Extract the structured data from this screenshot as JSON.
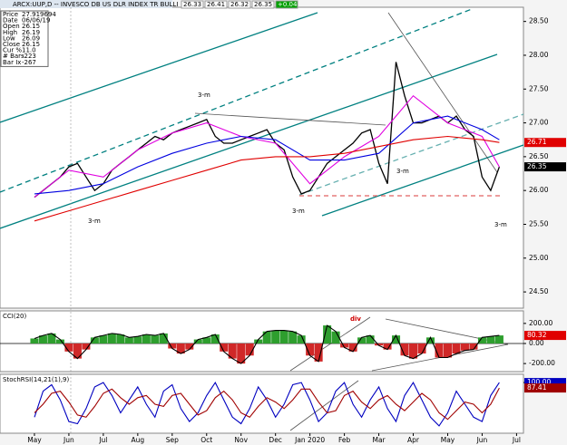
{
  "chart_data": [
    {
      "type": "line",
      "title": "ARCX:UUP,D -- INVESCO DB US DLR INDEX TR BULLI",
      "quote": [
        "26.33",
        "26.41",
        "26.32",
        "26.35",
        "+0.04"
      ],
      "info": [
        [
          "Price",
          "27.919694"
        ],
        [
          "Date",
          "06/06/19"
        ],
        [
          "Open",
          "26.15"
        ],
        [
          "High",
          "26.19"
        ],
        [
          "Low",
          "26.09"
        ],
        [
          "Close",
          "26.15"
        ],
        [
          "Cur %",
          "11.0"
        ],
        [
          "# Bars",
          "-223"
        ],
        [
          "Bar Ix",
          "-267"
        ]
      ],
      "annotations": [
        "3-m",
        "3-m",
        "3-m",
        "3-m",
        "3-m"
      ],
      "xlim": [
        -1,
        14.2
      ],
      "ylim": [
        24.26,
        28.71
      ],
      "yticks": [
        {
          "value": 28.5,
          "label": "28.50"
        },
        {
          "value": 28,
          "label": "28.00"
        },
        {
          "value": 27.5,
          "label": "27.50"
        },
        {
          "value": 27,
          "label": "27.00"
        },
        {
          "value": 26.5,
          "label": "26.50"
        },
        {
          "value": 26,
          "label": "26.00"
        },
        {
          "value": 25.5,
          "label": "25.50"
        },
        {
          "value": 25,
          "label": "25.00"
        },
        {
          "value": 24.5,
          "label": "24.50"
        }
      ],
      "price_labels": [
        {
          "value": 26.71,
          "label": "26.71",
          "color": "#e00000"
        },
        {
          "value": 26.35,
          "label": "26.35",
          "color": "#000000"
        }
      ],
      "series": [
        {
          "color": "#000000",
          "x": [
            0,
            0.25,
            0.5,
            0.75,
            1,
            1.25,
            1.5,
            1.75,
            2,
            2.25,
            2.5,
            2.75,
            3,
            3.25,
            3.5,
            3.75,
            4,
            4.25,
            4.5,
            4.75,
            5,
            5.25,
            5.5,
            5.75,
            6,
            6.25,
            6.5,
            6.75,
            7,
            7.25,
            7.5,
            7.75,
            8,
            8.25,
            8.5,
            8.75,
            9,
            9.25,
            9.5,
            9.75,
            10,
            10.25,
            10.5,
            10.75,
            11,
            11.25,
            11.5,
            11.75,
            12,
            12.25,
            12.5,
            12.75,
            13,
            13.25,
            13.5
          ],
          "values": [
            25.9,
            26.0,
            26.1,
            26.2,
            26.35,
            26.4,
            26.2,
            26.0,
            26.1,
            26.3,
            26.4,
            26.5,
            26.6,
            26.7,
            26.8,
            26.75,
            26.85,
            26.9,
            26.95,
            27.0,
            27.05,
            26.8,
            26.7,
            26.7,
            26.75,
            26.8,
            26.85,
            26.9,
            26.7,
            26.6,
            26.2,
            25.95,
            26.0,
            26.2,
            26.4,
            26.5,
            26.6,
            26.7,
            26.85,
            26.9,
            26.4,
            26.1,
            27.9,
            27.4,
            27.0,
            27.0,
            27.05,
            27.1,
            27.0,
            27.1,
            26.9,
            26.8,
            26.2,
            26.0,
            26.35
          ]
        },
        {
          "color": "#e000e0",
          "x": [
            0,
            1,
            2,
            3,
            4,
            5,
            6,
            7,
            8,
            9,
            10,
            11,
            12,
            13,
            13.5
          ],
          "values": [
            25.9,
            26.3,
            26.2,
            26.6,
            26.85,
            27.0,
            26.8,
            26.7,
            26.1,
            26.5,
            26.8,
            27.4,
            27.0,
            26.8,
            26.35
          ]
        },
        {
          "color": "#0000e0",
          "x": [
            0,
            1,
            2,
            3,
            4,
            5,
            6,
            7,
            8,
            9,
            10,
            11,
            12,
            13,
            13.5
          ],
          "values": [
            25.95,
            26.0,
            26.1,
            26.35,
            26.55,
            26.7,
            26.8,
            26.75,
            26.45,
            26.45,
            26.55,
            27.0,
            27.1,
            26.9,
            26.75
          ]
        },
        {
          "color": "#e00000",
          "x": [
            0,
            1,
            2,
            3,
            4,
            5,
            6,
            7,
            8,
            9,
            10,
            11,
            12,
            13,
            13.5
          ],
          "values": [
            25.55,
            25.7,
            25.85,
            26.0,
            26.15,
            26.3,
            26.45,
            26.5,
            26.5,
            26.55,
            26.65,
            26.75,
            26.8,
            26.75,
            26.71
          ]
        }
      ]
    },
    {
      "type": "bar",
      "title": "CCI(20)",
      "annotations": [
        "div"
      ],
      "xlim": [
        -1,
        14.2
      ],
      "ylim": [
        -280,
        325
      ],
      "yticks": [
        {
          "value": 200,
          "label": "200.00"
        },
        {
          "value": 0,
          "label": "0.00"
        },
        {
          "value": -200,
          "label": "-200.00"
        }
      ],
      "price_labels": [
        {
          "value": 80.32,
          "label": "80.32",
          "color": "#e00000"
        }
      ],
      "pos_color": "#2e9e2e",
      "neg_color": "#d02828",
      "series": [
        {
          "color": "#000000",
          "x": [
            0,
            0.25,
            0.5,
            0.75,
            1,
            1.25,
            1.5,
            1.75,
            2,
            2.25,
            2.5,
            2.75,
            3,
            3.25,
            3.5,
            3.75,
            4,
            4.25,
            4.5,
            4.75,
            5,
            5.25,
            5.5,
            5.75,
            6,
            6.25,
            6.5,
            6.75,
            7,
            7.25,
            7.5,
            7.75,
            8,
            8.25,
            8.5,
            8.75,
            9,
            9.25,
            9.5,
            9.75,
            10,
            10.25,
            10.5,
            10.75,
            11,
            11.25,
            11.5,
            11.75,
            12,
            12.25,
            12.5,
            12.75,
            13,
            13.25,
            13.5
          ],
          "values": [
            50,
            80,
            100,
            40,
            -80,
            -150,
            -60,
            60,
            80,
            100,
            90,
            60,
            70,
            90,
            80,
            100,
            -50,
            -100,
            -60,
            40,
            60,
            90,
            -80,
            -150,
            -200,
            -120,
            40,
            120,
            130,
            130,
            120,
            80,
            -120,
            -180,
            180,
            120,
            -40,
            -80,
            60,
            80,
            -20,
            -60,
            80,
            -120,
            -150,
            -100,
            60,
            -140,
            -140,
            -100,
            -70,
            -60,
            60,
            70,
            80.32
          ]
        }
      ]
    },
    {
      "type": "line",
      "title": "StochRSI(14,21(1),9)",
      "xlim": [
        -1,
        14.2
      ],
      "ylim": [
        -17,
        119
      ],
      "yticks": [
        {
          "value": 100,
          "label": "100.00"
        }
      ],
      "price_labels": [
        {
          "value": 100,
          "label": "100.00",
          "color": "#0000c0"
        },
        {
          "value": 87.41,
          "label": "87.41",
          "color": "#a00000"
        }
      ],
      "xticks": [
        {
          "value": 0,
          "label": "May"
        },
        {
          "value": 1,
          "label": "Jun"
        },
        {
          "value": 2,
          "label": "Jul"
        },
        {
          "value": 3,
          "label": "Aug"
        },
        {
          "value": 4,
          "label": "Sep"
        },
        {
          "value": 5,
          "label": "Oct"
        },
        {
          "value": 6,
          "label": "Nov"
        },
        {
          "value": 7,
          "label": "Dec"
        },
        {
          "value": 8,
          "label": "Jan 2020"
        },
        {
          "value": 9,
          "label": "Feb"
        },
        {
          "value": 10,
          "label": "Mar"
        },
        {
          "value": 11,
          "label": "Apr"
        },
        {
          "value": 12,
          "label": "May"
        },
        {
          "value": 13,
          "label": "Jun"
        },
        {
          "value": 14,
          "label": "Jul"
        }
      ],
      "series": [
        {
          "color": "#0000c0",
          "x": [
            0,
            0.25,
            0.5,
            0.75,
            1,
            1.25,
            1.5,
            1.75,
            2,
            2.25,
            2.5,
            2.75,
            3,
            3.25,
            3.5,
            3.75,
            4,
            4.25,
            4.5,
            4.75,
            5,
            5.25,
            5.5,
            5.75,
            6,
            6.25,
            6.5,
            6.75,
            7,
            7.25,
            7.5,
            7.75,
            8,
            8.25,
            8.5,
            8.75,
            9,
            9.25,
            9.5,
            9.75,
            10,
            10.25,
            10.5,
            10.75,
            11,
            11.25,
            11.5,
            11.75,
            12,
            12.25,
            12.5,
            12.75,
            13,
            13.25,
            13.5
          ],
          "values": [
            20,
            80,
            95,
            60,
            10,
            5,
            40,
            90,
            100,
            70,
            30,
            60,
            90,
            50,
            20,
            80,
            95,
            40,
            10,
            30,
            70,
            100,
            60,
            20,
            5,
            40,
            90,
            60,
            20,
            50,
            95,
            100,
            60,
            10,
            30,
            80,
            100,
            50,
            20,
            60,
            90,
            40,
            10,
            70,
            100,
            60,
            20,
            0,
            30,
            80,
            50,
            20,
            10,
            70,
            100
          ]
        },
        {
          "color": "#a00000",
          "x": [
            0,
            0.25,
            0.5,
            0.75,
            1,
            1.25,
            1.5,
            1.75,
            2,
            2.25,
            2.5,
            2.75,
            3,
            3.25,
            3.5,
            3.75,
            4,
            4.25,
            4.5,
            4.75,
            5,
            5.25,
            5.5,
            5.75,
            6,
            6.25,
            6.5,
            6.75,
            7,
            7.25,
            7.5,
            7.75,
            8,
            8.25,
            8.5,
            8.75,
            9,
            9.25,
            9.5,
            9.75,
            10,
            10.25,
            10.5,
            10.75,
            11,
            11.25,
            11.5,
            11.75,
            12,
            12.25,
            12.5,
            12.75,
            13,
            13.25,
            13.5
          ],
          "values": [
            30,
            50,
            75,
            80,
            55,
            25,
            20,
            45,
            75,
            85,
            65,
            50,
            65,
            70,
            50,
            45,
            70,
            75,
            50,
            25,
            35,
            65,
            80,
            60,
            30,
            20,
            45,
            65,
            55,
            40,
            60,
            85,
            85,
            55,
            30,
            35,
            70,
            80,
            55,
            40,
            60,
            70,
            50,
            35,
            55,
            75,
            60,
            30,
            15,
            35,
            55,
            50,
            30,
            50,
            87.41
          ]
        }
      ]
    }
  ]
}
